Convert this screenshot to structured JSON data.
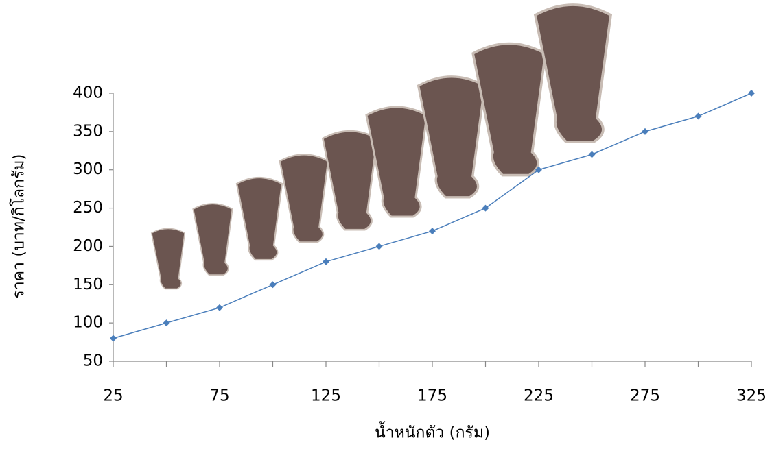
{
  "chart_data": {
    "type": "line",
    "x_label": "น้ำหนักตัว (กรัม)",
    "y_label": "ราคา (บาท/กิโลกรัม)",
    "x": [
      25,
      50,
      75,
      100,
      125,
      150,
      175,
      200,
      225,
      250,
      275,
      300,
      325
    ],
    "series": [
      {
        "color": "#4a7ebb",
        "values": [
          80,
          100,
          120,
          150,
          180,
          200,
          220,
          250,
          300,
          320,
          350,
          370,
          400
        ]
      }
    ],
    "xlim": [
      25,
      325
    ],
    "xticks": [
      25,
      75,
      125,
      175,
      225,
      275,
      325
    ],
    "ylim": [
      50,
      400
    ],
    "yticks": [
      50,
      100,
      150,
      200,
      250,
      300,
      350,
      400
    ],
    "grid": false
  }
}
